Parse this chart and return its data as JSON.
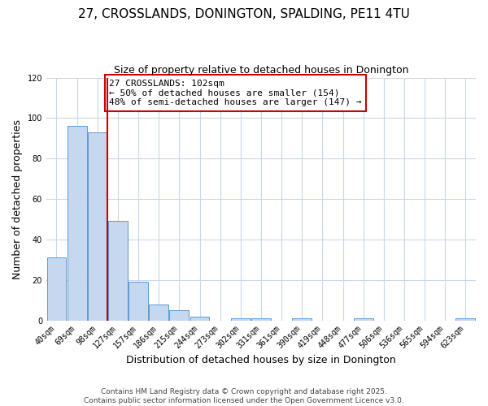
{
  "title": "27, CROSSLANDS, DONINGTON, SPALDING, PE11 4TU",
  "subtitle": "Size of property relative to detached houses in Donington",
  "xlabel": "Distribution of detached houses by size in Donington",
  "ylabel": "Number of detached properties",
  "categories": [
    "40sqm",
    "69sqm",
    "98sqm",
    "127sqm",
    "157sqm",
    "186sqm",
    "215sqm",
    "244sqm",
    "273sqm",
    "302sqm",
    "331sqm",
    "361sqm",
    "390sqm",
    "419sqm",
    "448sqm",
    "477sqm",
    "506sqm",
    "536sqm",
    "565sqm",
    "594sqm",
    "623sqm"
  ],
  "values": [
    31,
    96,
    93,
    49,
    19,
    8,
    5,
    2,
    0,
    1,
    1,
    0,
    1,
    0,
    0,
    1,
    0,
    0,
    0,
    0,
    1
  ],
  "bar_color": "#c5d8f0",
  "bar_edge_color": "#5b9bd5",
  "vline_x_index": 2,
  "vline_color": "#cc0000",
  "annotation_title": "27 CROSSLANDS: 102sqm",
  "annotation_line1": "← 50% of detached houses are smaller (154)",
  "annotation_line2": "48% of semi-detached houses are larger (147) →",
  "annotation_box_edge_color": "#cc0000",
  "ylim": [
    0,
    120
  ],
  "yticks": [
    0,
    20,
    40,
    60,
    80,
    100,
    120
  ],
  "background_color": "#ffffff",
  "grid_color": "#c8d8ea",
  "footer_line1": "Contains HM Land Registry data © Crown copyright and database right 2025.",
  "footer_line2": "Contains public sector information licensed under the Open Government Licence v3.0.",
  "title_fontsize": 11,
  "subtitle_fontsize": 9,
  "axis_label_fontsize": 9,
  "tick_fontsize": 7,
  "annotation_fontsize": 8,
  "footer_fontsize": 6.5
}
